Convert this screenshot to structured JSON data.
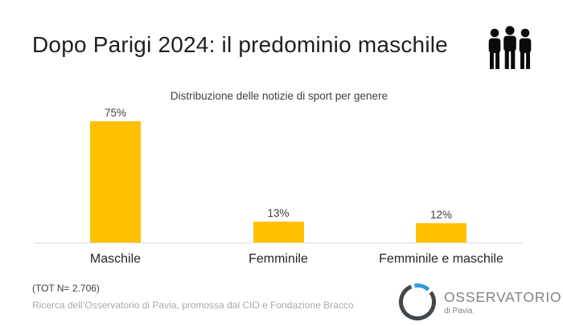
{
  "header": {
    "title": "Dopo Parigi 2024: il predominio maschile"
  },
  "chart_data": {
    "type": "bar",
    "title": "Distribuzione delle notizie di sport per genere",
    "categories": [
      "Maschile",
      "Femminile",
      "Femminile e maschile"
    ],
    "values": [
      75,
      13,
      12
    ],
    "value_labels": [
      "75%",
      "13%",
      "12%"
    ],
    "unit": "percent",
    "ylim": [
      0,
      80
    ],
    "grid": false,
    "legend": false,
    "bar_color": "#FFC000",
    "axis_line_color": "#D9D9D9"
  },
  "footer": {
    "sample_size": "(TOT N= 2.706)",
    "source": "Ricerca dell’Osservatorio di Pavia, promossa dal CIO e Fondazione Bracco"
  },
  "logo": {
    "name": "OSSERVATORIO",
    "subname": "di Pavia",
    "ring_dark_color": "#41464B",
    "ring_accent_color": "#2E9BD6",
    "text_color": "#7D838A"
  }
}
